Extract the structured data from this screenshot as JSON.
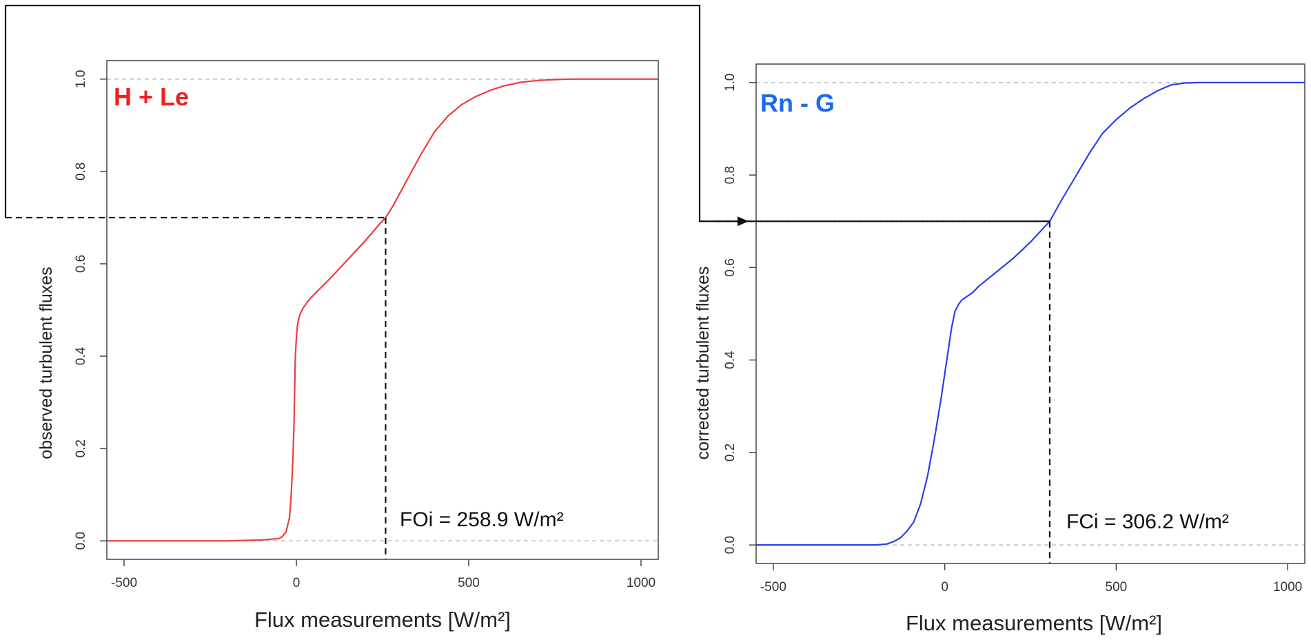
{
  "chart_data": [
    {
      "type": "line",
      "title": "",
      "panel_label": "H + Le",
      "xlabel": "Flux measurements [W/m²]",
      "ylabel": "observed turbulent fluxes",
      "xlim": [
        -550,
        1050
      ],
      "ylim": [
        -0.04,
        1.04
      ],
      "xticks": [
        -500,
        0,
        500,
        1000
      ],
      "yticks": [
        0.0,
        0.2,
        0.4,
        0.6,
        0.8,
        1.0
      ],
      "ytick_labels": [
        "0.0",
        "0.2",
        "0.4",
        "0.6",
        "0.8",
        "1.0"
      ],
      "xtick_labels": [
        "-500",
        "0",
        "500",
        "1000"
      ],
      "reference_lines_y": [
        0.0,
        1.0
      ],
      "series": [
        {
          "color": "#f03c3c",
          "x": [
            -550,
            -200,
            -100,
            -50,
            -40,
            -30,
            -20,
            -15,
            -10,
            -7,
            -5,
            -3,
            0,
            2,
            5,
            10,
            20,
            40,
            60,
            100,
            150,
            200,
            240,
            258.9,
            280,
            320,
            360,
            400,
            440,
            480,
            520,
            560,
            600,
            650,
            700,
            750,
            800,
            1050
          ],
          "y": [
            0.0,
            0.0,
            0.002,
            0.005,
            0.01,
            0.02,
            0.05,
            0.1,
            0.18,
            0.25,
            0.33,
            0.4,
            0.44,
            0.46,
            0.475,
            0.49,
            0.505,
            0.525,
            0.54,
            0.57,
            0.61,
            0.65,
            0.685,
            0.7,
            0.725,
            0.78,
            0.835,
            0.885,
            0.92,
            0.945,
            0.962,
            0.975,
            0.985,
            0.993,
            0.997,
            0.999,
            1.0,
            1.0
          ]
        }
      ],
      "annotation": {
        "x": 258.9,
        "y": 0.7,
        "label": "FOi = 258.9 W/m²"
      }
    },
    {
      "type": "line",
      "title": "",
      "panel_label": "Rn - G",
      "xlabel": "Flux measurements [W/m²]",
      "ylabel": "corrected turbulent fluxes",
      "xlim": [
        -550,
        1050
      ],
      "ylim": [
        -0.04,
        1.04
      ],
      "xticks": [
        -500,
        0,
        500,
        1000
      ],
      "yticks": [
        0.0,
        0.2,
        0.4,
        0.6,
        0.8,
        1.0
      ],
      "ytick_labels": [
        "0.0",
        "0.2",
        "0.4",
        "0.6",
        "0.8",
        "1.0"
      ],
      "xtick_labels": [
        "-500",
        "0",
        "500",
        "1000"
      ],
      "reference_lines_y": [
        0.0,
        1.0
      ],
      "series": [
        {
          "color": "#2b3ff0",
          "x": [
            -550,
            -200,
            -170,
            -150,
            -130,
            -110,
            -90,
            -70,
            -50,
            -30,
            -10,
            0,
            10,
            20,
            30,
            40,
            50,
            60,
            80,
            100,
            150,
            200,
            250,
            306.2,
            340,
            380,
            420,
            460,
            500,
            540,
            580,
            620,
            660,
            700,
            740,
            1050
          ],
          "y": [
            0.0,
            0.0,
            0.002,
            0.007,
            0.015,
            0.03,
            0.05,
            0.09,
            0.15,
            0.23,
            0.32,
            0.37,
            0.42,
            0.47,
            0.505,
            0.52,
            0.53,
            0.535,
            0.545,
            0.56,
            0.59,
            0.62,
            0.655,
            0.7,
            0.745,
            0.795,
            0.845,
            0.89,
            0.92,
            0.945,
            0.965,
            0.982,
            0.995,
            0.999,
            1.0,
            1.0
          ]
        }
      ],
      "annotation": {
        "x": 306.2,
        "y": 0.7,
        "label": "FCi = 306.2 W/m²"
      }
    }
  ]
}
